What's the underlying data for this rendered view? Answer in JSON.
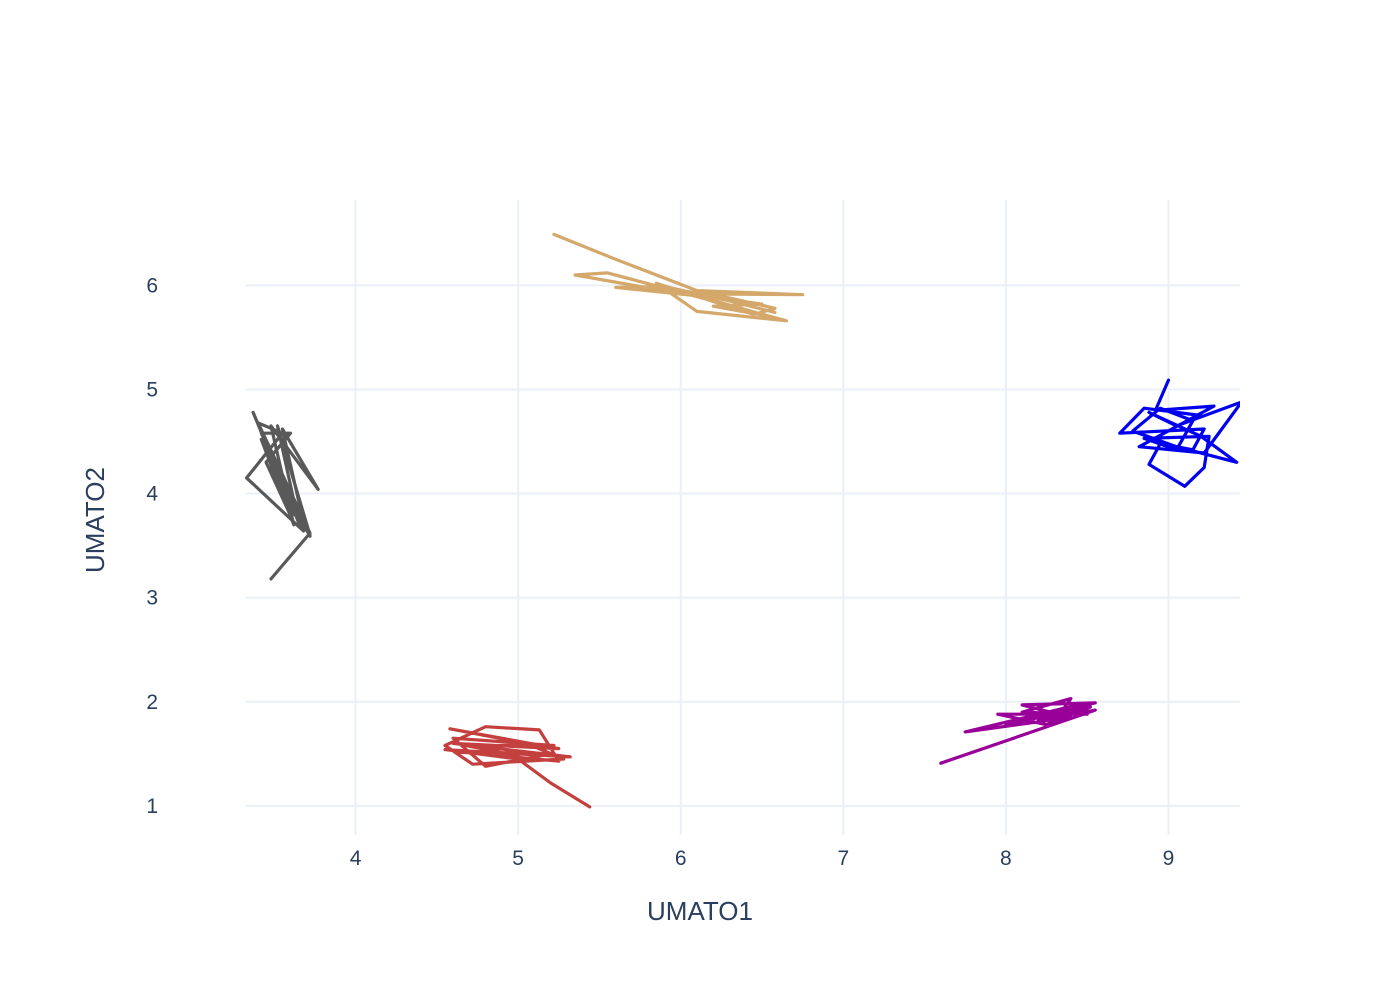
{
  "chart_data": {
    "type": "line",
    "title": "",
    "xlabel": "UMATO1",
    "ylabel": "UMATO2",
    "xlim": [
      3.32,
      9.44
    ],
    "ylim": [
      0.72,
      6.82
    ],
    "xticks": [
      4,
      5,
      6,
      7,
      8,
      9
    ],
    "yticks": [
      1,
      2,
      3,
      4,
      5,
      6
    ],
    "grid": true,
    "legend": "none",
    "series": [
      {
        "color": "#d4a76a",
        "points": [
          [
            5.22,
            6.49
          ],
          [
            5.6,
            6.25
          ],
          [
            6.1,
            5.95
          ],
          [
            6.75,
            5.91
          ],
          [
            6.0,
            5.92
          ],
          [
            5.35,
            6.1
          ],
          [
            5.55,
            6.12
          ],
          [
            6.2,
            5.85
          ],
          [
            6.65,
            5.66
          ],
          [
            6.1,
            5.75
          ],
          [
            5.85,
            6.02
          ],
          [
            6.45,
            5.72
          ],
          [
            6.58,
            5.78
          ],
          [
            6.3,
            5.88
          ],
          [
            5.8,
            6.0
          ],
          [
            6.0,
            5.93
          ],
          [
            6.5,
            5.82
          ],
          [
            6.2,
            5.8
          ],
          [
            6.55,
            5.7
          ],
          [
            6.1,
            5.9
          ],
          [
            5.6,
            5.98
          ],
          [
            5.9,
            5.99
          ],
          [
            6.3,
            5.85
          ],
          [
            6.58,
            5.74
          ]
        ]
      },
      {
        "color": "#0000ee",
        "points": [
          [
            9.0,
            5.09
          ],
          [
            8.92,
            4.8
          ],
          [
            9.28,
            4.84
          ],
          [
            8.82,
            4.45
          ],
          [
            9.22,
            4.39
          ],
          [
            9.45,
            4.88
          ],
          [
            9.05,
            4.65
          ],
          [
            8.88,
            4.78
          ],
          [
            9.2,
            4.55
          ],
          [
            9.42,
            4.3
          ],
          [
            9.05,
            4.45
          ],
          [
            8.78,
            4.6
          ],
          [
            8.95,
            4.82
          ],
          [
            9.15,
            4.7
          ],
          [
            9.05,
            4.42
          ],
          [
            8.85,
            4.53
          ],
          [
            9.25,
            4.55
          ],
          [
            9.22,
            4.25
          ],
          [
            9.1,
            4.07
          ],
          [
            8.88,
            4.28
          ],
          [
            8.95,
            4.48
          ],
          [
            9.15,
            4.42
          ],
          [
            9.22,
            4.62
          ],
          [
            8.7,
            4.58
          ],
          [
            8.85,
            4.82
          ],
          [
            9.2,
            4.75
          ]
        ]
      },
      {
        "color": "#595959",
        "points": [
          [
            3.48,
            3.18
          ],
          [
            3.72,
            3.62
          ],
          [
            3.4,
            4.68
          ],
          [
            3.55,
            4.58
          ],
          [
            3.33,
            4.15
          ],
          [
            3.68,
            3.64
          ],
          [
            3.37,
            4.78
          ],
          [
            3.65,
            3.72
          ],
          [
            3.52,
            4.65
          ],
          [
            3.72,
            3.6
          ],
          [
            3.42,
            4.52
          ],
          [
            3.62,
            3.7
          ],
          [
            3.48,
            4.65
          ],
          [
            3.77,
            4.04
          ],
          [
            3.55,
            4.62
          ],
          [
            3.69,
            3.65
          ],
          [
            3.45,
            4.42
          ],
          [
            3.62,
            3.8
          ],
          [
            3.48,
            4.28
          ],
          [
            3.72,
            3.59
          ],
          [
            3.42,
            4.58
          ],
          [
            3.6,
            4.58
          ],
          [
            3.45,
            4.3
          ],
          [
            3.62,
            3.72
          ]
        ]
      },
      {
        "color": "#c4403f",
        "points": [
          [
            5.44,
            0.99
          ],
          [
            5.2,
            1.22
          ],
          [
            5.0,
            1.45
          ],
          [
            4.55,
            1.54
          ],
          [
            5.32,
            1.47
          ],
          [
            4.6,
            1.6
          ],
          [
            5.25,
            1.55
          ],
          [
            4.58,
            1.74
          ],
          [
            5.05,
            1.6
          ],
          [
            5.28,
            1.45
          ],
          [
            4.72,
            1.4
          ],
          [
            4.55,
            1.58
          ],
          [
            4.8,
            1.76
          ],
          [
            5.13,
            1.73
          ],
          [
            5.25,
            1.43
          ],
          [
            4.62,
            1.52
          ],
          [
            5.2,
            1.5
          ],
          [
            4.8,
            1.38
          ],
          [
            4.6,
            1.65
          ],
          [
            5.22,
            1.58
          ],
          [
            4.68,
            1.58
          ],
          [
            5.0,
            1.48
          ]
        ]
      },
      {
        "color": "#990099",
        "points": [
          [
            7.6,
            1.41
          ],
          [
            8.55,
            1.92
          ],
          [
            8.2,
            1.82
          ],
          [
            8.47,
            1.98
          ],
          [
            7.75,
            1.71
          ],
          [
            8.4,
            1.85
          ],
          [
            8.1,
            1.97
          ],
          [
            8.55,
            1.99
          ],
          [
            8.0,
            1.78
          ],
          [
            8.35,
            1.92
          ],
          [
            8.4,
            2.03
          ],
          [
            8.1,
            1.9
          ],
          [
            8.5,
            1.88
          ],
          [
            7.95,
            1.88
          ],
          [
            8.25,
            1.78
          ],
          [
            8.52,
            1.95
          ],
          [
            8.05,
            1.8
          ],
          [
            8.3,
            1.9
          ]
        ]
      }
    ]
  }
}
